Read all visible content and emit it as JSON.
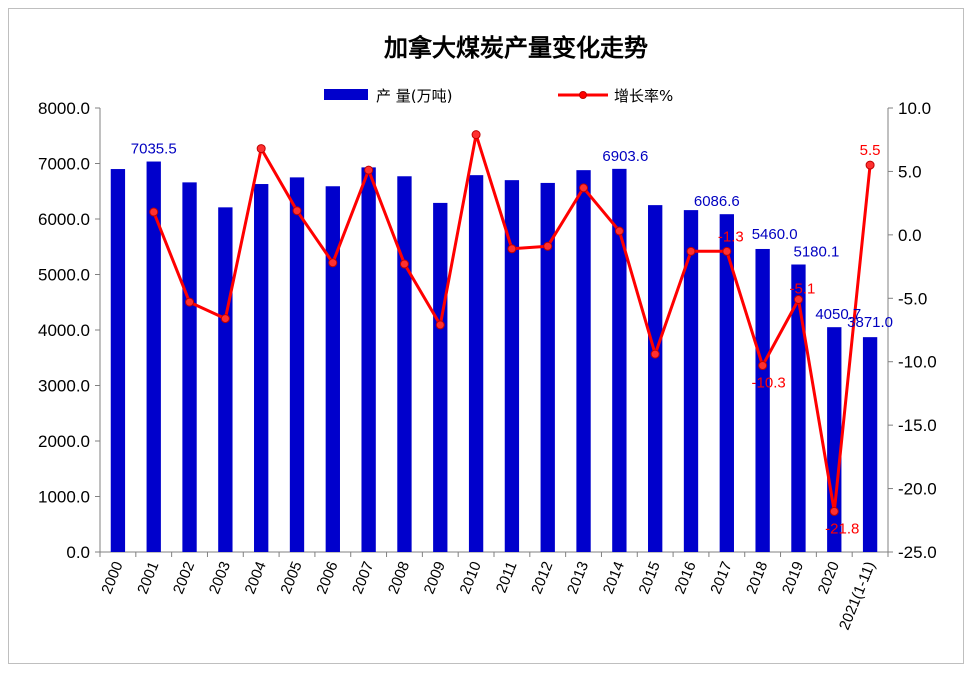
{
  "chart_data": {
    "type": "bar",
    "title": "加拿大煤炭产量变化走势",
    "categories": [
      "2000",
      "2001",
      "2002",
      "2003",
      "2004",
      "2005",
      "2006",
      "2007",
      "2008",
      "2009",
      "2010",
      "2011",
      "2012",
      "2013",
      "2014",
      "2015",
      "2016",
      "2017",
      "2018",
      "2019",
      "2020",
      "2021(1-11)"
    ],
    "series": [
      {
        "name": "产 量(万吨)",
        "kind": "bar",
        "axis": "left",
        "color": "#0000cc",
        "values": [
          6900,
          7035.5,
          6660,
          6210,
          6630,
          6750,
          6590,
          6930,
          6770,
          6290,
          6790,
          6700,
          6650,
          6880,
          6903.6,
          6250,
          6160,
          6086.6,
          5460.0,
          5180.1,
          4050.7,
          3871.0
        ],
        "labels": [
          "",
          "7035.5",
          "",
          "",
          "",
          "",
          "",
          "",
          "",
          "",
          "",
          "",
          "",
          "",
          "6903.6",
          "",
          "",
          "6086.6",
          "5460.0",
          "5180.1",
          "4050.7",
          "3871.0"
        ]
      },
      {
        "name": "增长率%",
        "kind": "line",
        "axis": "right",
        "color": "#ff0000",
        "values": [
          null,
          1.8,
          -5.3,
          -6.6,
          6.8,
          1.9,
          -2.2,
          5.1,
          -2.3,
          -7.1,
          7.9,
          -1.1,
          -0.9,
          3.7,
          0.3,
          -9.4,
          -1.3,
          -1.3,
          -10.3,
          -5.1,
          -21.8,
          5.5
        ],
        "labels": [
          "",
          "",
          "",
          "",
          "",
          "",
          "",
          "",
          "",
          "",
          "",
          "",
          "",
          "",
          "",
          "",
          "",
          "-1.3",
          "-10.3",
          "-5.1",
          "-21.8",
          "5.5"
        ]
      }
    ],
    "y_left": {
      "min": 0,
      "max": 8000,
      "step": 1000,
      "ticks": [
        "0.0",
        "1000.0",
        "2000.0",
        "3000.0",
        "4000.0",
        "5000.0",
        "6000.0",
        "7000.0",
        "8000.0"
      ]
    },
    "y_right": {
      "min": -25,
      "max": 10,
      "step": 5,
      "ticks": [
        "-25.0",
        "-20.0",
        "-15.0",
        "-10.0",
        "-5.0",
        "0.0",
        "5.0",
        "10.0"
      ]
    },
    "legend_placement": "top-center",
    "grid": false
  }
}
